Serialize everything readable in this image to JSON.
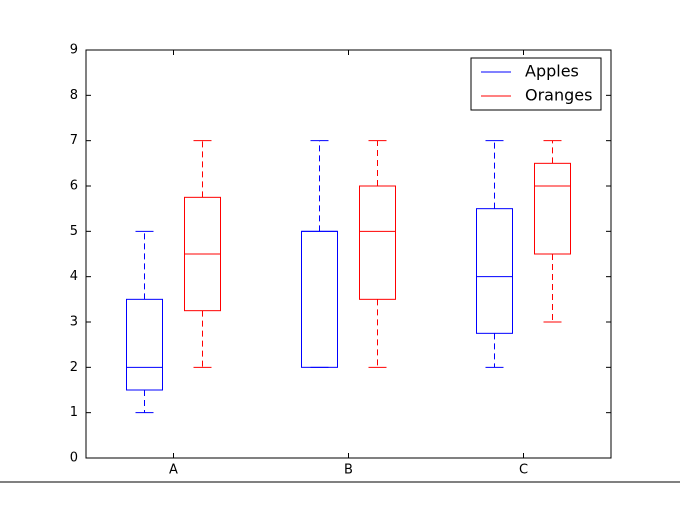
{
  "chart_data": {
    "type": "box",
    "categories": [
      "A",
      "B",
      "C"
    ],
    "ylim": [
      0,
      9
    ],
    "yticks": [
      0,
      1,
      2,
      3,
      4,
      5,
      6,
      7,
      8,
      9
    ],
    "legend": "upper right",
    "series": [
      {
        "name": "Apples",
        "color": "#0000ff",
        "boxes": [
          {
            "low": 1,
            "q1": 1.5,
            "median": 2,
            "q3": 3.5,
            "high": 5
          },
          {
            "low": 2,
            "q1": 2,
            "median": 5,
            "q3": 5,
            "high": 7
          },
          {
            "low": 2,
            "q1": 2.75,
            "median": 4,
            "q3": 5.5,
            "high": 7
          }
        ]
      },
      {
        "name": "Oranges",
        "color": "#ff0000",
        "boxes": [
          {
            "low": 2,
            "q1": 3.25,
            "median": 4.5,
            "q3": 5.75,
            "high": 7
          },
          {
            "low": 2,
            "q1": 3.5,
            "median": 5,
            "q3": 6,
            "high": 7
          },
          {
            "low": 3,
            "q1": 4.5,
            "median": 6,
            "q3": 6.5,
            "high": 7
          }
        ]
      }
    ]
  }
}
